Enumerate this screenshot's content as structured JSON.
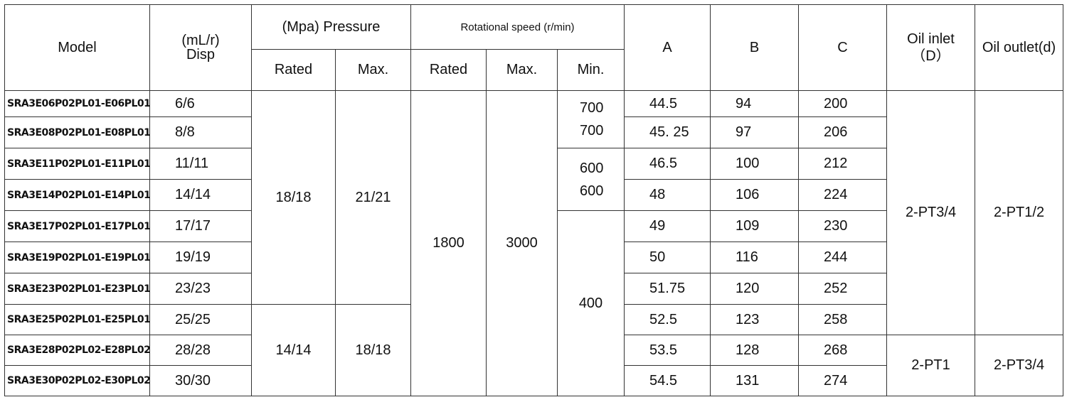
{
  "headers": {
    "model": "Model",
    "disp_top": "(mL/r)",
    "disp_bottom": "Disp",
    "pressure": "(Mpa) Pressure",
    "speed": "Rotational speed (r/min)",
    "rated": "Rated",
    "max": "Max.",
    "speed_rated": "Rated",
    "speed_max": "Max.",
    "speed_min": "Min.",
    "a": "A",
    "b": "B",
    "c": "C",
    "oil_inlet_top": "Oil inlet",
    "oil_inlet_bottom": "（D）",
    "oil_outlet": "Oil outlet(d)"
  },
  "rows": [
    {
      "model": "SRA3E06P02PL01-E06PL01",
      "disp": "6/6",
      "a": "44.5",
      "b": "94",
      "c": "200"
    },
    {
      "model": "SRA3E08P02PL01-E08PL01",
      "disp": "8/8",
      "a": "45. 25",
      "b": "97",
      "c": "206"
    },
    {
      "model": "SRA3E11P02PL01-E11PL01",
      "disp": "11/11",
      "a": "46.5",
      "b": "100",
      "c": "212"
    },
    {
      "model": "SRA3E14P02PL01-E14PL01",
      "disp": "14/14",
      "a": "48",
      "b": "106",
      "c": "224"
    },
    {
      "model": "SRA3E17P02PL01-E17PL01",
      "disp": "17/17",
      "a": "49",
      "b": "109",
      "c": "230"
    },
    {
      "model": "SRA3E19P02PL01-E19PL01",
      "disp": "19/19",
      "a": "50",
      "b": "116",
      "c": "244"
    },
    {
      "model": "SRA3E23P02PL01-E23PL01",
      "disp": "23/23",
      "a": "51.75",
      "b": "120",
      "c": "252"
    },
    {
      "model": "SRA3E25P02PL01-E25PL01",
      "disp": "25/25",
      "a": "52.5",
      "b": "123",
      "c": "258"
    },
    {
      "model": "SRA3E28P02PL02-E28PL02",
      "disp": "28/28",
      "a": "53.5",
      "b": "128",
      "c": "268"
    },
    {
      "model": "SRA3E30P02PL02-E30PL02",
      "disp": "30/30",
      "a": "54.5",
      "b": "131",
      "c": "274"
    }
  ],
  "merged": {
    "rated_pressure_1": "18/18",
    "max_pressure_1": "21/21",
    "rated_pressure_2": "14/14",
    "max_pressure_2": "18/18",
    "speed_rated": "1800",
    "speed_max": "3000",
    "min_a1": "700",
    "min_a2": "700",
    "min_b1": "600",
    "min_b2": "600",
    "min_c": "400",
    "inlet_1": "2-PT3/4",
    "outlet_1": "2-PT1/2",
    "inlet_2": "2-PT1",
    "outlet_2": "2-PT3/4"
  }
}
